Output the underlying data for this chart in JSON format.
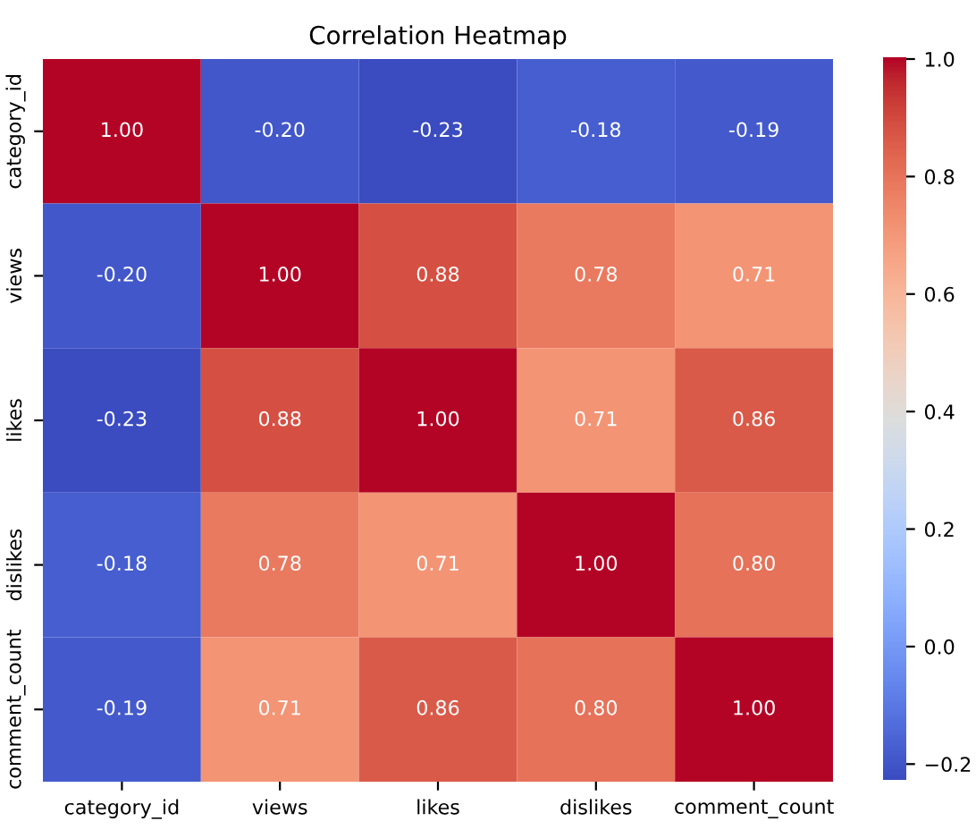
{
  "chart_data": {
    "type": "heatmap",
    "title": "Correlation Heatmap",
    "categories": [
      "category_id",
      "views",
      "likes",
      "dislikes",
      "comment_count"
    ],
    "y_categories": [
      "category_id",
      "views",
      "likes",
      "dislikes",
      "comment_count"
    ],
    "cells": [
      [
        1.0,
        -0.2,
        -0.23,
        -0.18,
        -0.19
      ],
      [
        -0.2,
        1.0,
        0.88,
        0.78,
        0.71
      ],
      [
        -0.23,
        0.88,
        1.0,
        0.71,
        0.86
      ],
      [
        -0.18,
        0.78,
        0.71,
        1.0,
        0.8
      ],
      [
        -0.19,
        0.71,
        0.86,
        0.8,
        1.0
      ]
    ],
    "cell_labels": [
      [
        "1.00",
        "-0.20",
        "-0.23",
        "-0.18",
        "-0.19"
      ],
      [
        "-0.20",
        "1.00",
        "0.88",
        "0.78",
        "0.71"
      ],
      [
        "-0.23",
        "0.88",
        "1.00",
        "0.71",
        "0.86"
      ],
      [
        "-0.18",
        "0.78",
        "0.71",
        "1.00",
        "0.80"
      ],
      [
        "-0.19",
        "0.71",
        "0.86",
        "0.80",
        "1.00"
      ]
    ],
    "clim": [
      -0.23,
      1.0
    ],
    "cticks": [
      {
        "value": -0.2,
        "label": "−0.2"
      },
      {
        "value": 0.0,
        "label": "0.0"
      },
      {
        "value": 0.2,
        "label": "0.2"
      },
      {
        "value": 0.4,
        "label": "0.4"
      },
      {
        "value": 0.6,
        "label": "0.6"
      },
      {
        "value": 0.8,
        "label": "0.8"
      },
      {
        "value": 1.0,
        "label": "1.0"
      }
    ]
  }
}
